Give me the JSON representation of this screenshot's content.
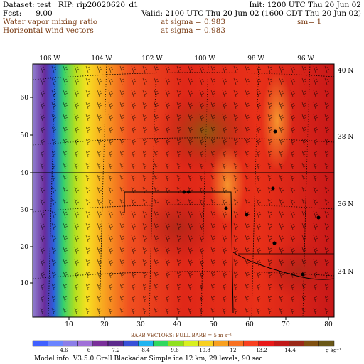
{
  "header": {
    "dataset_line": "Dataset: test   RIP: rip20020620_d1",
    "init_line": "Init: 1200 UTC Thu 20 Jun 02",
    "fcst_line": "Fcst:      9.00",
    "valid_line": "Valid: 2100 UTC Thu 20 Jun 02 (1600 CDT Thu 20 Jun 02)",
    "field1_name": "Water vapor mixing ratio",
    "field1_level": "at sigma = 0.983",
    "field1_smoothing": "sm= 1",
    "field2_name": "Horizontal wind vectors",
    "field2_level": "at sigma = 0.983"
  },
  "map": {
    "longitude_labels": [
      "106 W",
      "104 W",
      "102 W",
      "100 W",
      "98 W",
      "96 W"
    ],
    "latitude_labels": [
      "40 N",
      "38 N",
      "36 N",
      "34 N"
    ],
    "x_ticks": [
      "10",
      "20",
      "30",
      "40",
      "50",
      "60",
      "70",
      "80"
    ],
    "y_ticks": [
      "10",
      "20",
      "30",
      "40",
      "50",
      "60"
    ],
    "station_dots_count": 9
  },
  "barb_note": "BARB VECTORS:  FULL BARB = 5 m s⁻¹",
  "colorbar": {
    "labels": [
      "4.6",
      "6",
      "7.2",
      "8.4",
      "9.6",
      "10.8",
      "12",
      "13.2",
      "14.4"
    ],
    "units": "g kg⁻¹",
    "colors": [
      "#4060ff",
      "#6a84ff",
      "#8c7ee8",
      "#a070d8",
      "#7a2f9a",
      "#5c2a8c",
      "#3850d8",
      "#20b4f0",
      "#30d860",
      "#90e020",
      "#d8f020",
      "#f8d020",
      "#f8a020",
      "#f87020",
      "#f84020",
      "#e81818",
      "#c01818",
      "#9a2818",
      "#805010",
      "#6a5818"
    ]
  },
  "footer": "Model info: V3.5.0   Grell    Blackadar   Simple ice     12 km,   29 levels,    90 sec"
}
